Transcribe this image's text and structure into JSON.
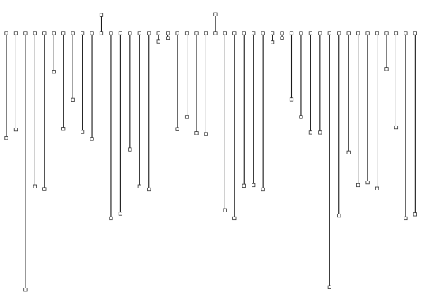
{
  "diagram": {
    "kind": "leaf-depth-stems",
    "colors": {
      "background": "#ffffff",
      "stem": "#1a1a1a",
      "node_fill": "#ffffff",
      "node_stroke": "#333333"
    },
    "leaf_depths": [
      0.454,
      0.426,
      0.953,
      0.613,
      0.622,
      0.236,
      0.424,
      0.328,
      0.434,
      0.457,
      0.049,
      0.718,
      0.703,
      0.492,
      0.613,
      0.623,
      0.137,
      0.126,
      0.425,
      0.385,
      0.438,
      0.441,
      0.047,
      0.692,
      0.718,
      0.611,
      0.609,
      0.623,
      0.139,
      0.126,
      0.327,
      0.385,
      0.436,
      0.436,
      0.945,
      0.709,
      0.502,
      0.609,
      0.6,
      0.62,
      0.227,
      0.419,
      0.718,
      0.705
    ]
  }
}
